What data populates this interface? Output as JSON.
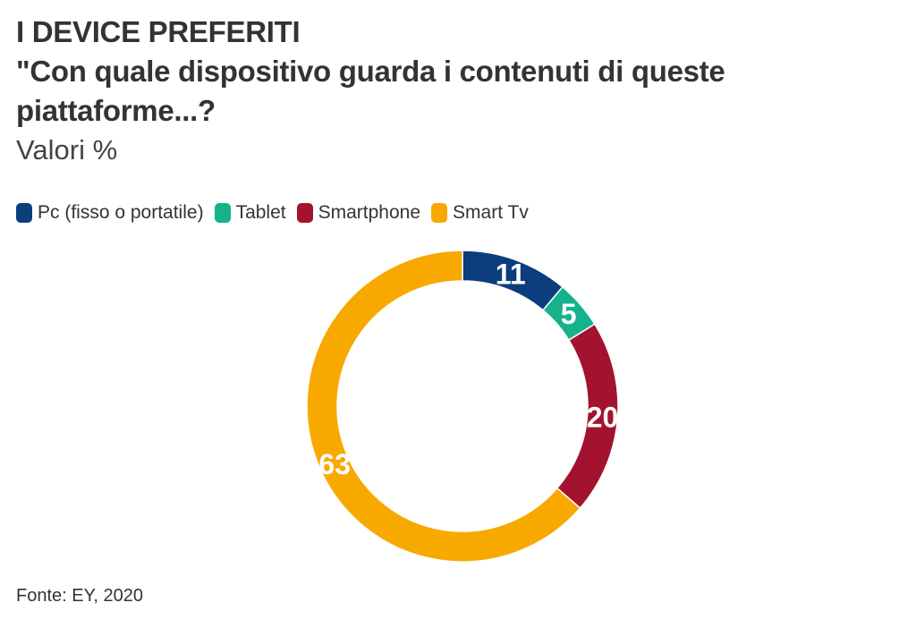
{
  "header": {
    "title": "I DEVICE PREFERITI",
    "subtitle_line1": "\"Con quale dispositivo guarda i contenuti di queste",
    "subtitle_line2": "piattaforme...?",
    "unit": "Valori %"
  },
  "source": "Fonte: EY, 2020",
  "chart_data": {
    "type": "pie",
    "variant": "donut",
    "legend_position": "top-left",
    "categories": [
      "Pc (fisso o portatile)",
      "Tablet",
      "Smartphone",
      "Smart Tv"
    ],
    "values": [
      11,
      5,
      20,
      63
    ],
    "colors": [
      "#0c3d7d",
      "#16b28c",
      "#a3122e",
      "#f8a900"
    ],
    "data_labels": [
      "11",
      "5",
      "20",
      "63"
    ]
  }
}
